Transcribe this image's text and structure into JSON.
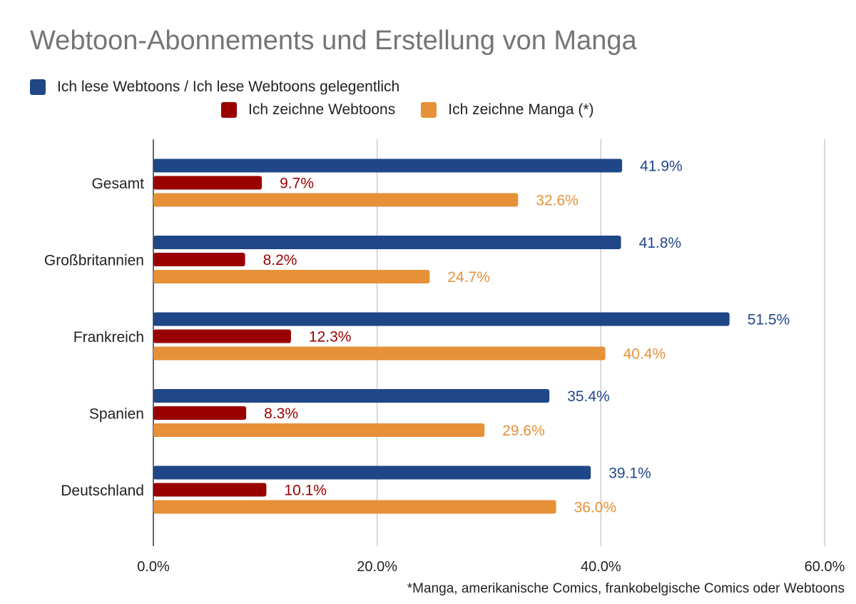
{
  "colors": {
    "series_1": "#1f4788",
    "series_2": "#990000",
    "series_3": "#e69138",
    "grid": "#cccccc",
    "axis": "#333333"
  },
  "footnote": "*Manga, amerikanische Comics, frankobelgische Comics oder Webtoons",
  "chart_data": {
    "type": "bar",
    "orientation": "horizontal",
    "title": "Webtoon-Abonnements und Erstellung von Manga",
    "categories": [
      "Gesamt",
      "Großbritannien",
      "Frankreich",
      "Spanien",
      "Deutschland"
    ],
    "series": [
      {
        "name": "Ich lese Webtoons / Ich lese Webtoons gelegentlich",
        "color": "#1f4788",
        "values": [
          41.9,
          41.8,
          51.5,
          35.4,
          39.1
        ]
      },
      {
        "name": "Ich zeichne Webtoons",
        "color": "#990000",
        "values": [
          9.7,
          8.2,
          12.3,
          8.3,
          10.1
        ]
      },
      {
        "name": "Ich zeichne Manga (*)",
        "color": "#e69138",
        "values": [
          32.6,
          24.7,
          40.4,
          29.6,
          36.0
        ]
      }
    ],
    "value_labels": [
      [
        "41.9%",
        "41.8%",
        "51.5%",
        "35.4%",
        "39.1%"
      ],
      [
        "9.7%",
        "8.2%",
        "12.3%",
        "8.3%",
        "10.1%"
      ],
      [
        "32.6%",
        "24.7%",
        "40.4%",
        "29.6%",
        "36.0%"
      ]
    ],
    "xlim": [
      0,
      60
    ],
    "x_ticks": [
      0,
      20,
      40,
      60
    ],
    "x_tick_labels": [
      "0.0%",
      "20.0%",
      "40.0%",
      "60.0%"
    ],
    "grid": true,
    "legend_position": "top"
  }
}
